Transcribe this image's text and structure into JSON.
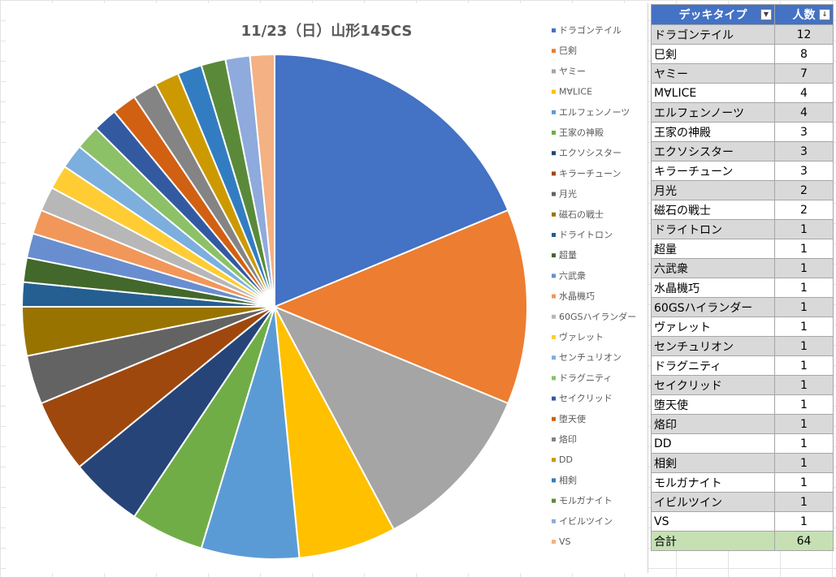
{
  "chart_data": {
    "type": "pie",
    "title": "11/23（日）山形145CS",
    "legend_position": "right",
    "categories": [
      "ドラゴンテイル",
      "巳剣",
      "ヤミー",
      "M∀LICE",
      "エルフェンノーツ",
      "王家の神殿",
      "エクソシスター",
      "キラーチューン",
      "月光",
      "磁石の戦士",
      "ドライトロン",
      "超量",
      "六武衆",
      "水晶機巧",
      "60GSハイランダー",
      "ヴァレット",
      "センチュリオン",
      "ドラグニティ",
      "セイクリッド",
      "堕天使",
      "烙印",
      "DD",
      "相剣",
      "モルガナイト",
      "イビルツイン",
      "VS"
    ],
    "values": [
      12,
      8,
      7,
      4,
      4,
      3,
      3,
      3,
      2,
      2,
      1,
      1,
      1,
      1,
      1,
      1,
      1,
      1,
      1,
      1,
      1,
      1,
      1,
      1,
      1,
      1
    ],
    "colors": [
      "#4472c4",
      "#ed7d31",
      "#a5a5a5",
      "#ffc000",
      "#5b9bd5",
      "#70ad47",
      "#264478",
      "#9e480e",
      "#636363",
      "#997300",
      "#255e91",
      "#43682b",
      "#698ed0",
      "#f1975a",
      "#b7b7b7",
      "#ffcd33",
      "#7cafdd",
      "#8cc168",
      "#335aa1",
      "#d26012",
      "#848484",
      "#cc9a00",
      "#327dc2",
      "#5a8a39",
      "#8faadc",
      "#f4b183"
    ]
  },
  "table": {
    "header_name": "デッキタイプ",
    "header_count": "人数",
    "total_label": "合計",
    "total_value": "64"
  }
}
